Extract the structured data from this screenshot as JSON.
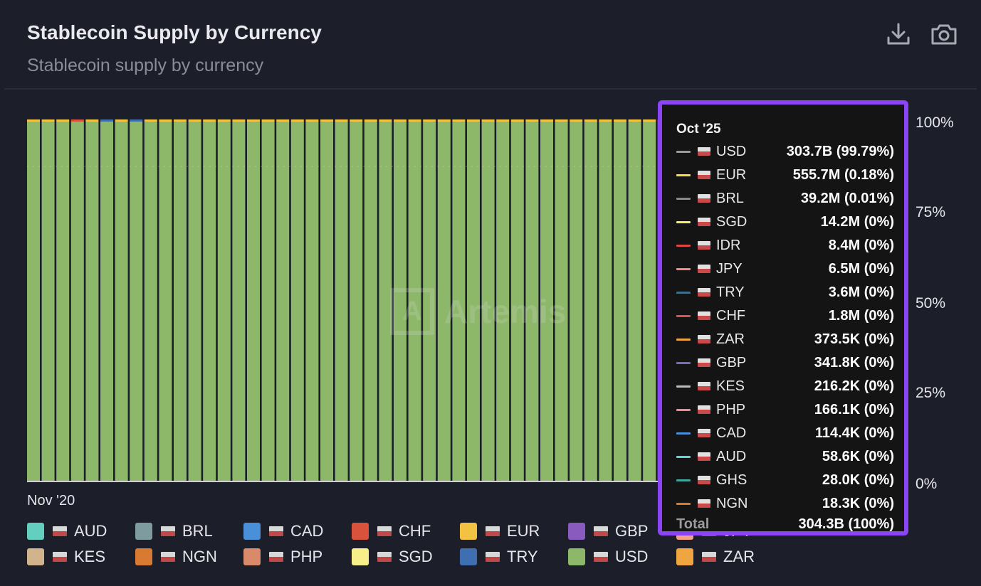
{
  "header": {
    "title": "Stablecoin Supply by Currency",
    "subtitle": "Stablecoin supply by currency",
    "download_icon": "download-icon",
    "camera_icon": "camera-icon"
  },
  "watermark": {
    "text": "Artemis",
    "logo": "artemis-logo"
  },
  "chart_data": {
    "type": "bar",
    "stacked": "percent",
    "title": "Stablecoin Supply by Currency",
    "x_first_tick_label": "Nov '20",
    "num_bars": 44,
    "yticks": [
      "100%",
      "75%",
      "50%",
      "25%",
      "0%"
    ],
    "ylim": [
      0,
      100
    ],
    "series_colors": {
      "AUD": "#64cfbf",
      "BRL": "#7e9c9f",
      "CAD": "#4a90d9",
      "CHF": "#d9533c",
      "EUR": "#f4c242",
      "GBP": "#8a5bbf",
      "JPY": "#f4a185",
      "KES": "#d2b48c",
      "NGN": "#d97a33",
      "PHP": "#d98a6a",
      "SGD": "#f7ef8a",
      "TRY": "#3f6fb0",
      "USD": "#8db86a",
      "ZAR": "#f0a640",
      "IDR": "#e04545",
      "GHS": "#3fa79c"
    },
    "series": [
      {
        "name": "USD",
        "values_percent_approx": "≈99.8% in every month shown"
      }
    ],
    "hover_point": {
      "date": "Oct '25",
      "rows": [
        {
          "currency": "USD",
          "value": "303.7B (99.79%)",
          "dash": "#9a9a9a"
        },
        {
          "currency": "EUR",
          "value": "555.7M (0.18%)",
          "dash": "#f4df4a"
        },
        {
          "currency": "BRL",
          "value": "39.2M (0.01%)",
          "dash": "#8a8a8a"
        },
        {
          "currency": "SGD",
          "value": "14.2M (0%)",
          "dash": "#f6ec6a"
        },
        {
          "currency": "IDR",
          "value": "8.4M (0%)",
          "dash": "#e04545"
        },
        {
          "currency": "JPY",
          "value": "6.5M (0%)",
          "dash": "#f08a8a"
        },
        {
          "currency": "TRY",
          "value": "3.6M (0%)",
          "dash": "#3f6f8a"
        },
        {
          "currency": "CHF",
          "value": "1.8M (0%)",
          "dash": "#d9534a"
        },
        {
          "currency": "ZAR",
          "value": "373.5K (0%)",
          "dash": "#f0a640"
        },
        {
          "currency": "GBP",
          "value": "341.8K (0%)",
          "dash": "#7a6bbf"
        },
        {
          "currency": "KES",
          "value": "216.2K (0%)",
          "dash": "#bdbdbd"
        },
        {
          "currency": "PHP",
          "value": "166.1K (0%)",
          "dash": "#f08a9a"
        },
        {
          "currency": "CAD",
          "value": "114.4K (0%)",
          "dash": "#4a90d9"
        },
        {
          "currency": "AUD",
          "value": "58.6K (0%)",
          "dash": "#64cfdf"
        },
        {
          "currency": "GHS",
          "value": "28.0K (0%)",
          "dash": "#3fa79c"
        },
        {
          "currency": "NGN",
          "value": "18.3K (0%)",
          "dash": "#d97a33"
        }
      ],
      "total_label": "Total",
      "total_value": "304.3B (100%)"
    }
  },
  "legend": [
    {
      "label": "AUD",
      "color": "#64cfbf"
    },
    {
      "label": "BRL",
      "color": "#7e9c9f"
    },
    {
      "label": "CAD",
      "color": "#4a90d9"
    },
    {
      "label": "CHF",
      "color": "#d9533c"
    },
    {
      "label": "EUR",
      "color": "#f4c242"
    },
    {
      "label": "GBP",
      "color": "#8a5bbf"
    },
    {
      "label": "JPY",
      "color": "#f4a185"
    },
    {
      "label": "KES",
      "color": "#d2b48c"
    },
    {
      "label": "NGN",
      "color": "#d97a33"
    },
    {
      "label": "PHP",
      "color": "#d98a6a"
    },
    {
      "label": "SGD",
      "color": "#f7ef8a"
    },
    {
      "label": "TRY",
      "color": "#3f6fb0"
    },
    {
      "label": "USD",
      "color": "#8db86a"
    },
    {
      "label": "ZAR",
      "color": "#f0a640"
    }
  ]
}
